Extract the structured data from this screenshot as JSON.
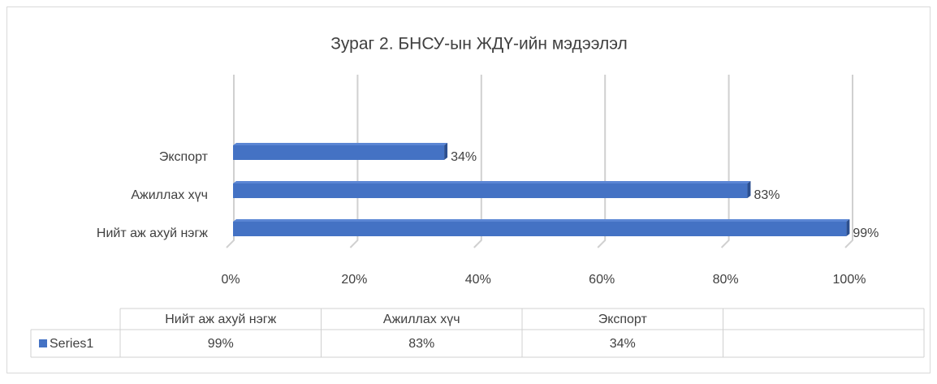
{
  "chart_data": {
    "type": "bar",
    "orientation": "horizontal",
    "title": "Зураг 2. БНСУ-ын ЖДҮ-ийн мэдээлэл",
    "categories": [
      "Нийт аж ахуй нэгж",
      "Ажиллах хүч",
      "Экспорт"
    ],
    "series": [
      {
        "name": "Series1",
        "color": "#4472c4",
        "values": [
          99,
          83,
          34
        ],
        "value_labels": [
          "99%",
          "83%",
          "34%"
        ]
      }
    ],
    "xlim": [
      0,
      100
    ],
    "xticks": [
      {
        "value": 0,
        "label": "0%"
      },
      {
        "value": 20,
        "label": "20%"
      },
      {
        "value": 40,
        "label": "40%"
      },
      {
        "value": 60,
        "label": "60%"
      },
      {
        "value": 80,
        "label": "80%"
      },
      {
        "value": 100,
        "label": "100%"
      }
    ],
    "grid": true,
    "data_table": true
  }
}
